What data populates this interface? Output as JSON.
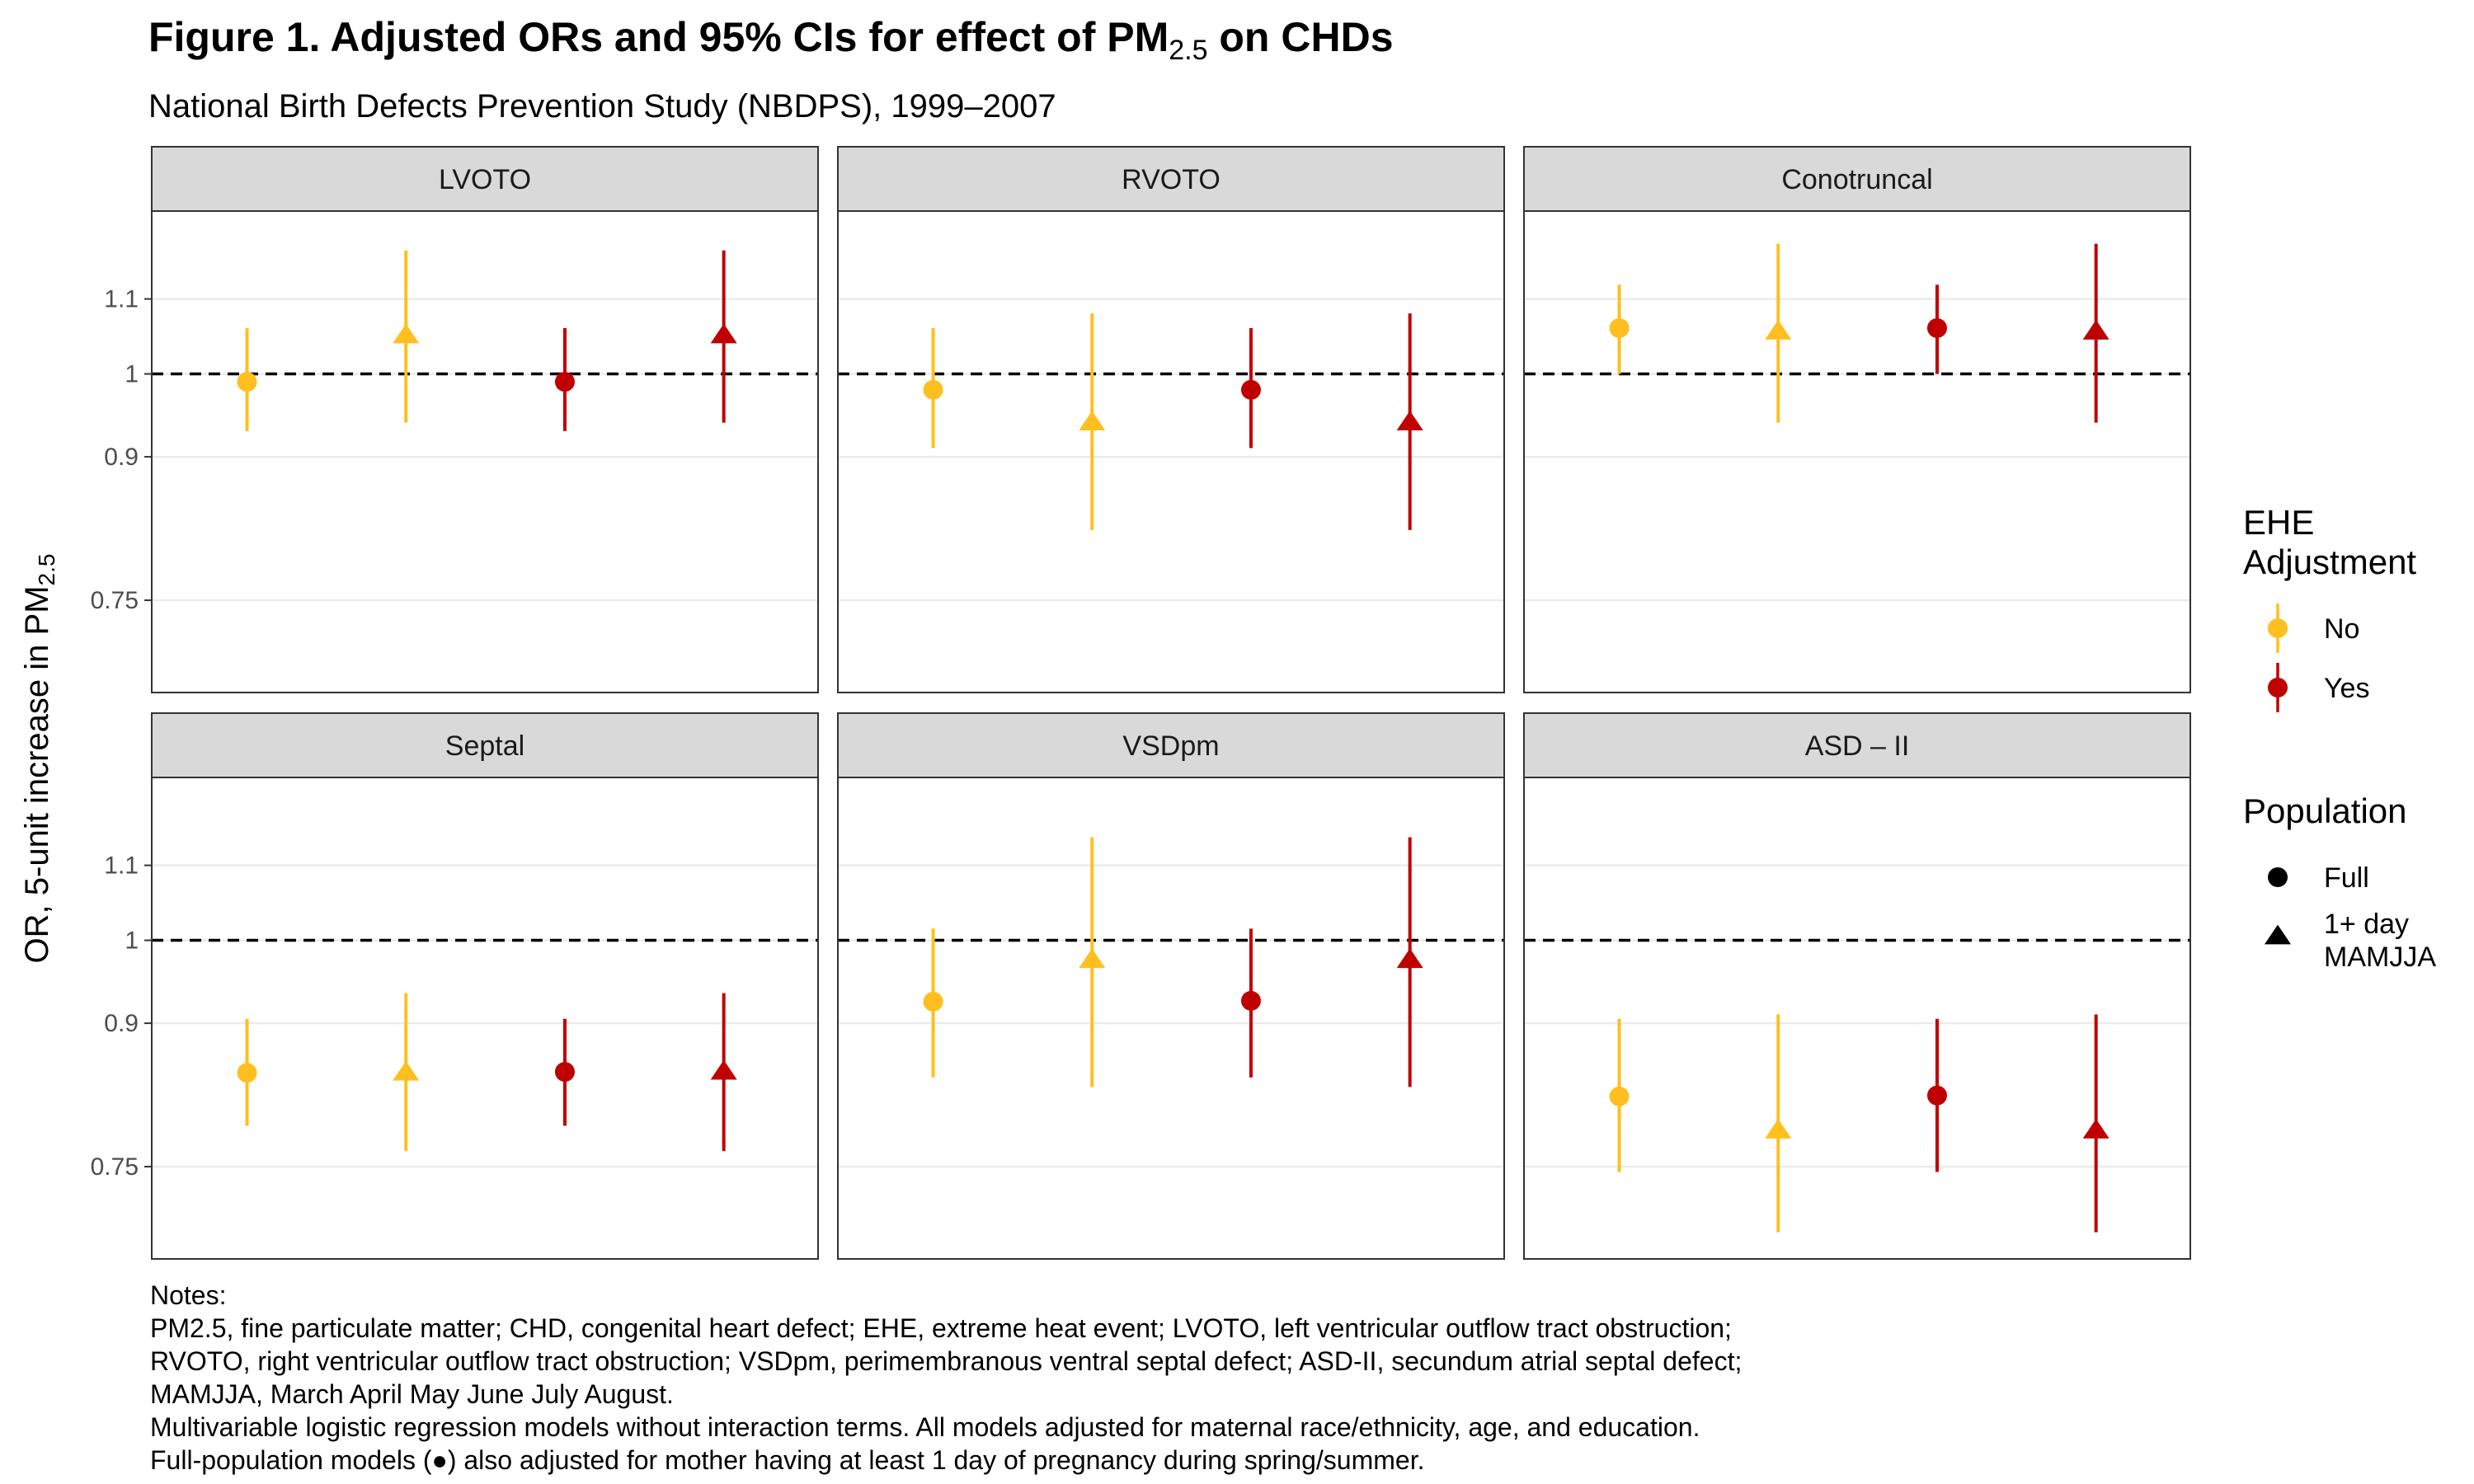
{
  "title_main": "Figure 1. Adjusted ORs and 95% CIs for effect of PM",
  "title_sub": "2.5",
  "title_tail": " on CHDs",
  "subtitle": "National Birth Defects Prevention Study (NBDPS), 1999–2007",
  "colors": {
    "No": "#FFBF1F",
    "Yes": "#C00000",
    "strip_bg": "#D9D9D9",
    "grid": "#EBEBEB"
  },
  "chart_data": {
    "type": "scatter",
    "ylabel_main": "OR, 5-unit increase in PM",
    "ylabel_sub": "2.5",
    "y_scale": "log",
    "ylim": [
      0.667,
      1.23
    ],
    "y_ticks": [
      0.75,
      0.9,
      1,
      1.1
    ],
    "y_tick_labels": [
      "0.75",
      "0.9",
      "1",
      "1.1"
    ],
    "reference_line": 1,
    "grid": true,
    "legend_placement": "right",
    "legend": {
      "color_title": [
        "EHE",
        "Adjustment"
      ],
      "color_entries": [
        "No",
        "Yes"
      ],
      "shape_title": "Population",
      "shape_entries": [
        "Full",
        "1+ day MAMJJA"
      ],
      "shape_entry_lines": [
        [
          "Full"
        ],
        [
          "1+ day",
          "MAMJJA"
        ]
      ]
    },
    "panels": [
      {
        "name": "LVOTO",
        "points": [
          {
            "ehe": "No",
            "population": "Full",
            "or": 0.99,
            "lo": 0.93,
            "hi": 1.06
          },
          {
            "ehe": "No",
            "population": "1+ day MAMJJA",
            "or": 1.05,
            "lo": 0.94,
            "hi": 1.17
          },
          {
            "ehe": "Yes",
            "population": "Full",
            "or": 0.99,
            "lo": 0.93,
            "hi": 1.06
          },
          {
            "ehe": "Yes",
            "population": "1+ day MAMJJA",
            "or": 1.05,
            "lo": 0.94,
            "hi": 1.17
          }
        ]
      },
      {
        "name": "RVOTO",
        "points": [
          {
            "ehe": "No",
            "population": "Full",
            "or": 0.98,
            "lo": 0.91,
            "hi": 1.06
          },
          {
            "ehe": "No",
            "population": "1+ day MAMJJA",
            "or": 0.94,
            "lo": 0.82,
            "hi": 1.08
          },
          {
            "ehe": "Yes",
            "population": "Full",
            "or": 0.98,
            "lo": 0.91,
            "hi": 1.06
          },
          {
            "ehe": "Yes",
            "population": "1+ day MAMJJA",
            "or": 0.94,
            "lo": 0.82,
            "hi": 1.08
          }
        ]
      },
      {
        "name": "Conotruncal",
        "points": [
          {
            "ehe": "No",
            "population": "Full",
            "or": 1.06,
            "lo": 1.0,
            "hi": 1.12
          },
          {
            "ehe": "No",
            "population": "1+ day MAMJJA",
            "or": 1.055,
            "lo": 0.94,
            "hi": 1.18
          },
          {
            "ehe": "Yes",
            "population": "Full",
            "or": 1.06,
            "lo": 1.0,
            "hi": 1.12
          },
          {
            "ehe": "Yes",
            "population": "1+ day MAMJJA",
            "or": 1.055,
            "lo": 0.94,
            "hi": 1.18
          }
        ]
      },
      {
        "name": "Septal",
        "points": [
          {
            "ehe": "No",
            "population": "Full",
            "or": 0.845,
            "lo": 0.79,
            "hi": 0.905
          },
          {
            "ehe": "No",
            "population": "1+ day MAMJJA",
            "or": 0.845,
            "lo": 0.765,
            "hi": 0.935
          },
          {
            "ehe": "Yes",
            "population": "Full",
            "or": 0.846,
            "lo": 0.79,
            "hi": 0.905
          },
          {
            "ehe": "Yes",
            "population": "1+ day MAMJJA",
            "or": 0.846,
            "lo": 0.765,
            "hi": 0.935
          }
        ]
      },
      {
        "name": "VSDpm",
        "points": [
          {
            "ehe": "No",
            "population": "Full",
            "or": 0.925,
            "lo": 0.84,
            "hi": 1.015
          },
          {
            "ehe": "No",
            "population": "1+ day MAMJJA",
            "or": 0.975,
            "lo": 0.83,
            "hi": 1.14
          },
          {
            "ehe": "Yes",
            "population": "Full",
            "or": 0.926,
            "lo": 0.84,
            "hi": 1.015
          },
          {
            "ehe": "Yes",
            "population": "1+ day MAMJJA",
            "or": 0.975,
            "lo": 0.83,
            "hi": 1.14
          }
        ]
      },
      {
        "name": "ASD – II",
        "points": [
          {
            "ehe": "No",
            "population": "Full",
            "or": 0.82,
            "lo": 0.745,
            "hi": 0.905
          },
          {
            "ehe": "No",
            "population": "1+ day MAMJJA",
            "or": 0.785,
            "lo": 0.69,
            "hi": 0.91
          },
          {
            "ehe": "Yes",
            "population": "Full",
            "or": 0.821,
            "lo": 0.745,
            "hi": 0.905
          },
          {
            "ehe": "Yes",
            "population": "1+ day MAMJJA",
            "or": 0.785,
            "lo": 0.69,
            "hi": 0.91
          }
        ]
      }
    ]
  },
  "notes": [
    "Notes:",
    "PM2.5, fine particulate matter; CHD, congenital heart defect; EHE, extreme heat event; LVOTO, left ventricular outflow tract obstruction;",
    "RVOTO, right ventricular outflow tract obstruction; VSDpm, perimembranous ventral septal defect; ASD-II, secundum atrial septal defect;",
    "MAMJJA, March April May June July August.",
    "Multivariable logistic regression models without interaction terms. All models adjusted for maternal race/ethnicity, age, and education.",
    "Full-population models (●) also adjusted for mother having at least 1 day of pregnancy during spring/summer."
  ]
}
